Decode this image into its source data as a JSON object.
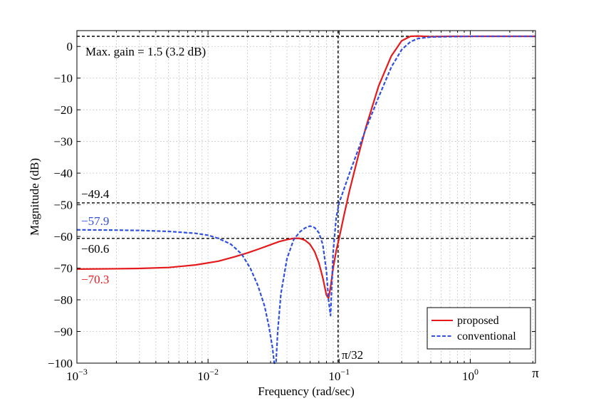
{
  "chart_data": {
    "type": "line",
    "xscale": "log",
    "title": "",
    "xlabel": "Frequency (rad/sec)",
    "ylabel": "Magnitude (dB)",
    "xlim": [
      0.001,
      3.14159
    ],
    "ylim": [
      -100,
      5
    ],
    "grid": true,
    "xticks": [
      {
        "value": 0.001,
        "base": "10",
        "exp": "−3"
      },
      {
        "value": 0.01,
        "base": "10",
        "exp": "−2"
      },
      {
        "value": 0.1,
        "base": "10",
        "exp": "−1"
      },
      {
        "value": 1,
        "base": "10",
        "exp": "0"
      },
      {
        "value": 3.14159,
        "label": "π"
      }
    ],
    "yticks": [
      {
        "value": 0,
        "label": "0"
      },
      {
        "value": -10,
        "label": "−10"
      },
      {
        "value": -20,
        "label": "−20"
      },
      {
        "value": -30,
        "label": "−30"
      },
      {
        "value": -40,
        "label": "−40"
      },
      {
        "value": -50,
        "label": "−50"
      },
      {
        "value": -60,
        "label": "−60"
      },
      {
        "value": -70,
        "label": "−70"
      },
      {
        "value": -80,
        "label": "−80"
      },
      {
        "value": -90,
        "label": "−90"
      },
      {
        "value": -100,
        "label": "−100"
      }
    ],
    "series": [
      {
        "name": "proposed",
        "color": "#e41a1c",
        "style": "solid",
        "x": [
          0.001,
          0.002,
          0.003,
          0.005,
          0.008,
          0.012,
          0.016,
          0.02,
          0.025,
          0.03,
          0.035,
          0.04,
          0.045,
          0.05,
          0.055,
          0.06,
          0.065,
          0.07,
          0.075,
          0.08,
          0.083,
          0.086,
          0.09,
          0.095,
          0.1,
          0.11,
          0.12,
          0.14,
          0.16,
          0.2,
          0.25,
          0.3,
          0.35,
          0.4,
          0.5,
          0.7,
          1.0,
          2.0,
          3.14159
        ],
        "values": [
          -70.3,
          -70.2,
          -70.1,
          -69.8,
          -69.0,
          -67.8,
          -66.4,
          -65.2,
          -63.8,
          -62.6,
          -61.6,
          -61.0,
          -60.6,
          -60.6,
          -61.2,
          -62.5,
          -64.8,
          -68.3,
          -73.0,
          -78.5,
          -79.5,
          -76.0,
          -70.0,
          -64.5,
          -60.5,
          -52.5,
          -45.5,
          -34.5,
          -25.5,
          -12.5,
          -3.0,
          1.8,
          3.2,
          3.3,
          3.1,
          3.2,
          3.2,
          3.2,
          3.2
        ]
      },
      {
        "name": "conventional",
        "color": "#3050e0",
        "style": "dashed",
        "x": [
          0.001,
          0.002,
          0.003,
          0.005,
          0.008,
          0.01,
          0.012,
          0.015,
          0.018,
          0.021,
          0.024,
          0.027,
          0.029,
          0.031,
          0.032,
          0.0325,
          0.033,
          0.034,
          0.036,
          0.04,
          0.045,
          0.05,
          0.055,
          0.06,
          0.065,
          0.07,
          0.075,
          0.08,
          0.083,
          0.086,
          0.09,
          0.095,
          0.1,
          0.11,
          0.12,
          0.14,
          0.16,
          0.2,
          0.25,
          0.3,
          0.35,
          0.4,
          0.5,
          0.7,
          1.0,
          2.0,
          3.14159
        ],
        "values": [
          -57.9,
          -58.0,
          -58.1,
          -58.4,
          -59.0,
          -59.6,
          -60.6,
          -62.5,
          -65.5,
          -70.0,
          -75.5,
          -82.0,
          -88.0,
          -95.0,
          -100.0,
          -100.0,
          -100.0,
          -90.0,
          -78.0,
          -67.0,
          -61.0,
          -58.6,
          -57.3,
          -56.7,
          -57.2,
          -58.8,
          -62.5,
          -71.0,
          -80.0,
          -85.0,
          -65.0,
          -54.0,
          -49.4,
          -44.5,
          -40.0,
          -32.5,
          -26.0,
          -16.0,
          -6.5,
          -1.0,
          1.5,
          2.5,
          3.0,
          3.1,
          3.2,
          3.2,
          3.2
        ]
      }
    ],
    "legend": {
      "position": "bottom-right",
      "entries": [
        {
          "label": "proposed",
          "color": "#e41a1c",
          "style": "solid"
        },
        {
          "label": "conventional",
          "color": "#3050e0",
          "style": "dashed"
        }
      ]
    },
    "reference_lines": [
      {
        "type": "horizontal",
        "value": 3.2
      },
      {
        "type": "horizontal",
        "value": -49.4
      },
      {
        "type": "horizontal",
        "value": -60.6
      },
      {
        "type": "vertical",
        "value": 0.09817
      }
    ],
    "annotations": [
      {
        "text": "Max. gain = 1.5 (3.2 dB)",
        "color": "#000000"
      },
      {
        "text": "−49.4",
        "value": -49.4,
        "color": "#000000"
      },
      {
        "text": "−57.9",
        "value": -57.9,
        "color": "#3050e0"
      },
      {
        "text": "−60.6",
        "value": -60.6,
        "color": "#000000"
      },
      {
        "text": "−70.3",
        "value": -70.3,
        "color": "#e41a1c"
      },
      {
        "text": "π/32",
        "value": 0.09817,
        "color": "#000000"
      }
    ]
  }
}
